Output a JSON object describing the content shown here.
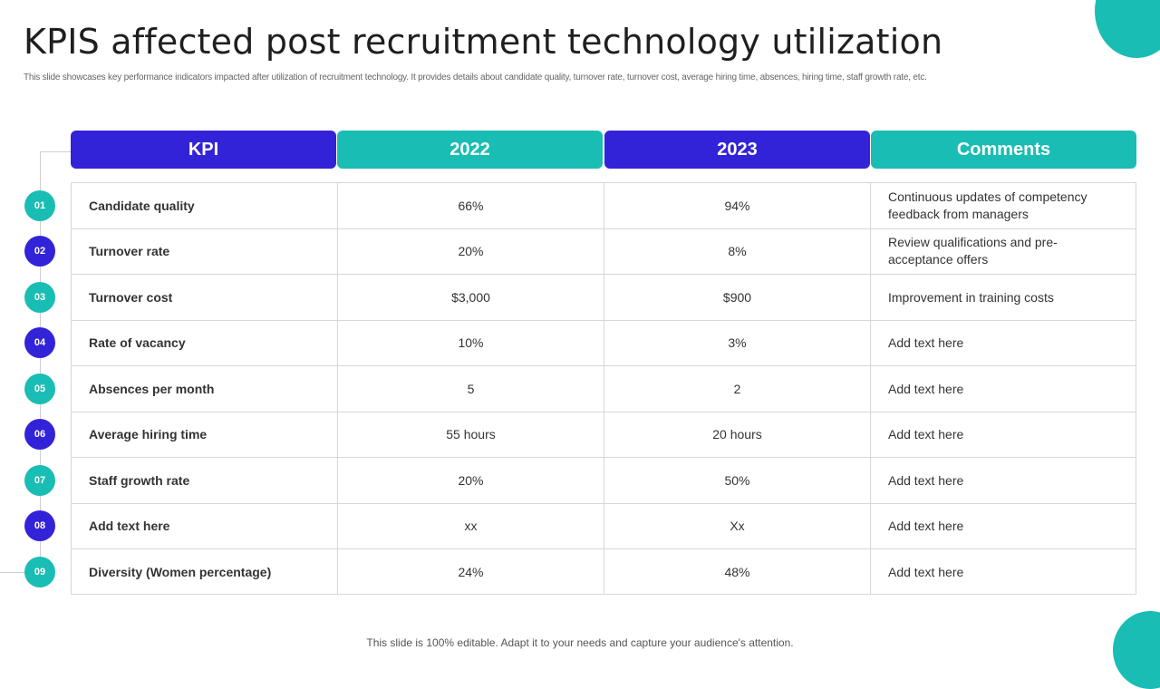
{
  "slide": {
    "title": "KPIS affected post recruitment technology utilization",
    "subtitle": "This slide showcases key performance indicators impacted after utilization of recruitment technology. It provides details about candidate quality, turnover rate, turnover cost, average hiring time, absences, hiring time, staff growth rate, etc.",
    "footer": "This slide is 100% editable. Adapt it to your needs and capture your audience's attention.",
    "accent_blue": "#3323d8",
    "accent_teal": "#19bdb4"
  },
  "table": {
    "headers": [
      "KPI",
      "2022",
      "2023",
      "Comments"
    ],
    "rows": [
      {
        "num": "01",
        "kpi": "Candidate quality",
        "y2022": "66%",
        "y2023": "94%",
        "comment": "Continuous updates of competency feedback from managers"
      },
      {
        "num": "02",
        "kpi": "Turnover rate",
        "y2022": "20%",
        "y2023": "8%",
        "comment": "Review qualifications and pre-acceptance offers"
      },
      {
        "num": "03",
        "kpi": "Turnover cost",
        "y2022": "$3,000",
        "y2023": "$900",
        "comment": "Improvement  in training costs"
      },
      {
        "num": "04",
        "kpi": "Rate of vacancy",
        "y2022": "10%",
        "y2023": "3%",
        "comment": "Add text here"
      },
      {
        "num": "05",
        "kpi": "Absences per month",
        "y2022": "5",
        "y2023": "2",
        "comment": "Add text here"
      },
      {
        "num": "06",
        "kpi": "Average hiring time",
        "y2022": "55 hours",
        "y2023": "20 hours",
        "comment": "Add text here"
      },
      {
        "num": "07",
        "kpi": "Staff growth rate",
        "y2022": "20%",
        "y2023": "50%",
        "comment": "Add text here"
      },
      {
        "num": "08",
        "kpi": "Add text here",
        "y2022": "xx",
        "y2023": "Xx",
        "comment": "Add text here"
      },
      {
        "num": "09",
        "kpi": "Diversity (Women percentage)",
        "y2022": "24%",
        "y2023": "48%",
        "comment": "Add text here"
      }
    ]
  }
}
